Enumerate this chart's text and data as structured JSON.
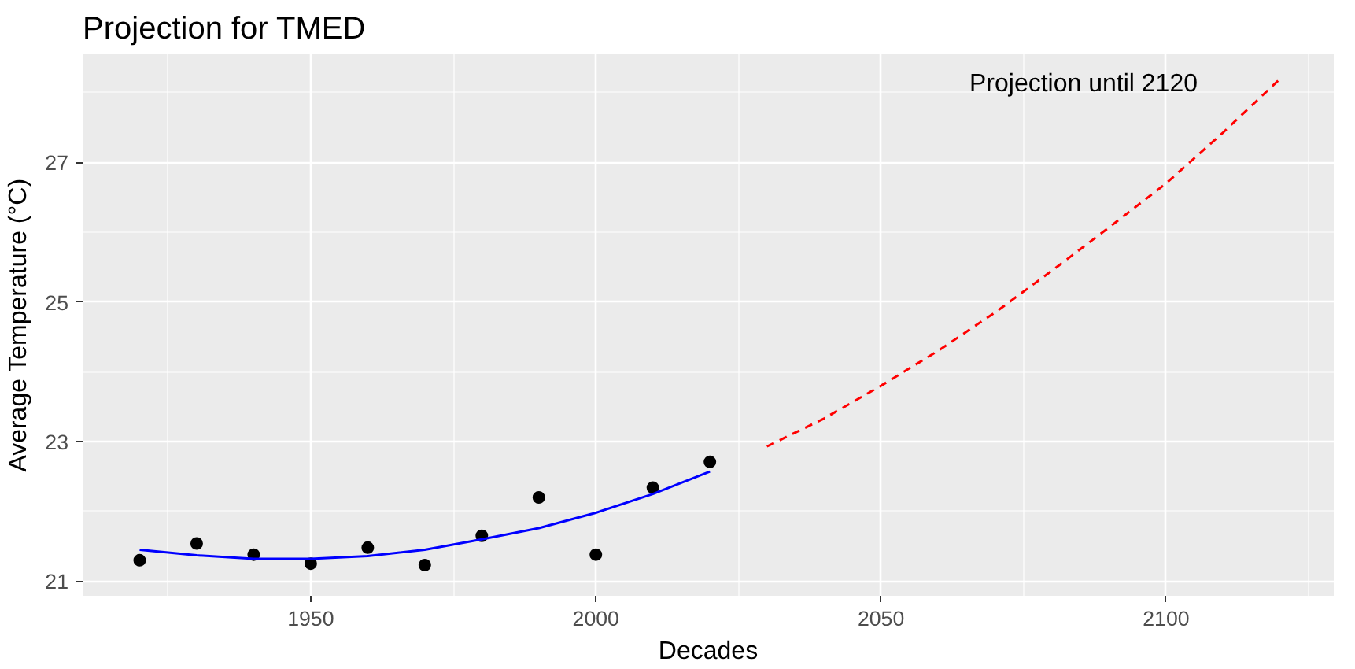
{
  "chart_data": {
    "type": "scatter",
    "title": "Projection for TMED",
    "xlabel": "Decades",
    "ylabel": "Average Temperature (°C)",
    "xlim": [
      1910,
      2129.4
    ],
    "ylim": [
      20.79,
      28.55
    ],
    "xticks": [
      1950,
      2000,
      2050,
      2100
    ],
    "yticks": [
      21,
      23,
      25,
      27
    ],
    "grid": true,
    "series": [
      {
        "color": "#000000",
        "marker": "circle",
        "x": [
          1920,
          1930,
          1940,
          1950,
          1960,
          1970,
          1980,
          1990,
          2000,
          2010,
          2020
        ],
        "values": [
          21.3,
          21.54,
          21.38,
          21.25,
          21.48,
          21.23,
          21.65,
          22.2,
          21.38,
          22.34,
          22.71
        ]
      },
      {
        "type": "line",
        "color": "#0000ff",
        "line_style": "solid",
        "x": [
          1920,
          1930,
          1940,
          1950,
          1960,
          1970,
          1980,
          1990,
          2000,
          2010,
          2020
        ],
        "values": [
          21.45,
          21.37,
          21.32,
          21.32,
          21.36,
          21.45,
          21.6,
          21.76,
          21.98,
          22.25,
          22.57
        ]
      },
      {
        "type": "line",
        "color": "#ff0000",
        "line_style": "dashed",
        "x": [
          2030,
          2040,
          2050,
          2060,
          2070,
          2080,
          2090,
          2100,
          2110,
          2120
        ],
        "values": [
          22.93,
          23.33,
          23.8,
          24.3,
          24.85,
          25.45,
          26.07,
          26.7,
          27.43,
          28.2
        ]
      }
    ],
    "annotations": [
      "Projection until 2120"
    ]
  }
}
